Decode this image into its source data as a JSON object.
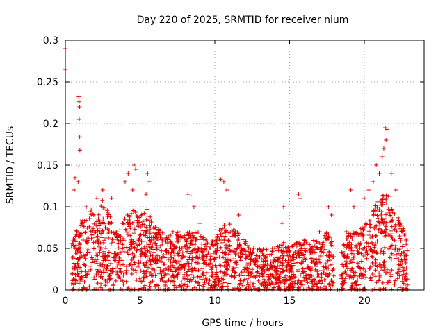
{
  "chart_data": {
    "type": "scatter",
    "title": "Day 220 of 2025, SRMTID for receiver nium",
    "xlabel": "GPS time / hours",
    "ylabel": "SRMTID / TECUs",
    "xlim": [
      0,
      24
    ],
    "ylim": [
      0,
      0.3
    ],
    "x_ticks": [
      0,
      5,
      10,
      15,
      20
    ],
    "x_tick_labels": [
      "0",
      "5",
      "10",
      "15",
      "20"
    ],
    "y_ticks": [
      0,
      0.05,
      0.1,
      0.15,
      0.2,
      0.25,
      0.3
    ],
    "y_tick_labels": [
      "0",
      "0.05",
      "0.1",
      "0.15",
      "0.2",
      "0.25",
      "0.3"
    ],
    "grid": true,
    "marker": "+",
    "marker_color": "#e00000",
    "series": [
      {
        "name": "SRMTID",
        "points": [
          [
            0.0,
            0.29
          ],
          [
            0.0,
            0.265
          ],
          [
            0.0,
            0.263
          ],
          [
            0.5,
            0.04
          ],
          [
            0.6,
            0.12
          ],
          [
            0.65,
            0.135
          ],
          [
            0.9,
            0.232
          ],
          [
            0.92,
            0.226
          ],
          [
            0.95,
            0.22
          ],
          [
            0.93,
            0.205
          ],
          [
            0.96,
            0.184
          ],
          [
            0.97,
            0.168
          ],
          [
            0.9,
            0.148
          ],
          [
            0.85,
            0.13
          ],
          [
            1.1,
            0.08
          ],
          [
            1.2,
            0.06
          ],
          [
            1.3,
            0.03
          ],
          [
            1.4,
            0.1
          ],
          [
            1.5,
            0.02
          ],
          [
            1.9,
            0.09
          ],
          [
            2.1,
            0.11
          ],
          [
            2.3,
            0.07
          ],
          [
            2.5,
            0.12
          ],
          [
            2.7,
            0.05
          ],
          [
            2.9,
            0.08
          ],
          [
            3.1,
            0.11
          ],
          [
            3.3,
            0.04
          ],
          [
            4.0,
            0.13
          ],
          [
            4.2,
            0.14
          ],
          [
            4.5,
            0.12
          ],
          [
            4.6,
            0.15
          ],
          [
            4.7,
            0.145
          ],
          [
            4.9,
            0.06
          ],
          [
            5.5,
            0.14
          ],
          [
            5.6,
            0.13
          ],
          [
            5.4,
            0.115
          ],
          [
            6.5,
            0.06
          ],
          [
            7.2,
            0.07
          ],
          [
            7.8,
            0.05
          ],
          [
            8.2,
            0.115
          ],
          [
            8.4,
            0.113
          ],
          [
            8.6,
            0.1
          ],
          [
            9.0,
            0.08
          ],
          [
            9.4,
            0.06
          ],
          [
            10.4,
            0.133
          ],
          [
            10.6,
            0.13
          ],
          [
            10.8,
            0.12
          ],
          [
            11.2,
            0.07
          ],
          [
            11.6,
            0.09
          ],
          [
            12.2,
            0.03
          ],
          [
            12.6,
            0.05
          ],
          [
            13.0,
            0.04
          ],
          [
            13.5,
            0.03
          ],
          [
            14.0,
            0.05
          ],
          [
            14.5,
            0.08
          ],
          [
            14.6,
            0.1
          ],
          [
            15.2,
            0.04
          ],
          [
            15.6,
            0.115
          ],
          [
            15.7,
            0.11
          ],
          [
            16.0,
            0.06
          ],
          [
            16.5,
            0.05
          ],
          [
            17.0,
            0.07
          ],
          [
            17.6,
            0.1
          ],
          [
            17.8,
            0.09
          ],
          [
            18.8,
            0.07
          ],
          [
            19.1,
            0.12
          ],
          [
            19.3,
            0.1
          ],
          [
            19.7,
            0.05
          ],
          [
            20.0,
            0.11
          ],
          [
            20.3,
            0.12
          ],
          [
            20.6,
            0.13
          ],
          [
            20.8,
            0.15
          ],
          [
            21.0,
            0.14
          ],
          [
            21.2,
            0.16
          ],
          [
            21.3,
            0.17
          ],
          [
            21.4,
            0.195
          ],
          [
            21.5,
            0.193
          ],
          [
            21.45,
            0.18
          ],
          [
            21.8,
            0.14
          ],
          [
            22.1,
            0.12
          ],
          [
            22.4,
            0.08
          ],
          [
            22.8,
            0.06
          ]
        ]
      }
    ],
    "density_profile_hours": [
      [
        0.4,
        0.06
      ],
      [
        1.2,
        0.09
      ],
      [
        2.0,
        0.1
      ],
      [
        2.5,
        0.11
      ],
      [
        3.0,
        0.09
      ],
      [
        3.5,
        0.07
      ],
      [
        4.0,
        0.09
      ],
      [
        4.5,
        0.1
      ],
      [
        5.0,
        0.09
      ],
      [
        5.5,
        0.1
      ],
      [
        6.0,
        0.08
      ],
      [
        6.5,
        0.07
      ],
      [
        7.0,
        0.07
      ],
      [
        7.5,
        0.07
      ],
      [
        8.0,
        0.07
      ],
      [
        8.5,
        0.07
      ],
      [
        9.0,
        0.07
      ],
      [
        9.5,
        0.06
      ],
      [
        10.0,
        0.06
      ],
      [
        10.5,
        0.08
      ],
      [
        11.0,
        0.08
      ],
      [
        11.5,
        0.07
      ],
      [
        12.0,
        0.06
      ],
      [
        12.5,
        0.05
      ],
      [
        13.0,
        0.05
      ],
      [
        13.5,
        0.05
      ],
      [
        14.0,
        0.05
      ],
      [
        14.5,
        0.06
      ],
      [
        15.0,
        0.05
      ],
      [
        15.5,
        0.06
      ],
      [
        16.0,
        0.06
      ],
      [
        16.5,
        0.06
      ],
      [
        17.0,
        0.06
      ],
      [
        17.5,
        0.07
      ],
      [
        18.0,
        0.06
      ],
      [
        18.5,
        0.05
      ],
      [
        19.0,
        0.07
      ],
      [
        19.5,
        0.07
      ],
      [
        20.0,
        0.08
      ],
      [
        20.5,
        0.1
      ],
      [
        21.0,
        0.11
      ],
      [
        21.5,
        0.12
      ],
      [
        22.0,
        0.1
      ],
      [
        22.5,
        0.08
      ],
      [
        22.9,
        0.06
      ]
    ]
  }
}
